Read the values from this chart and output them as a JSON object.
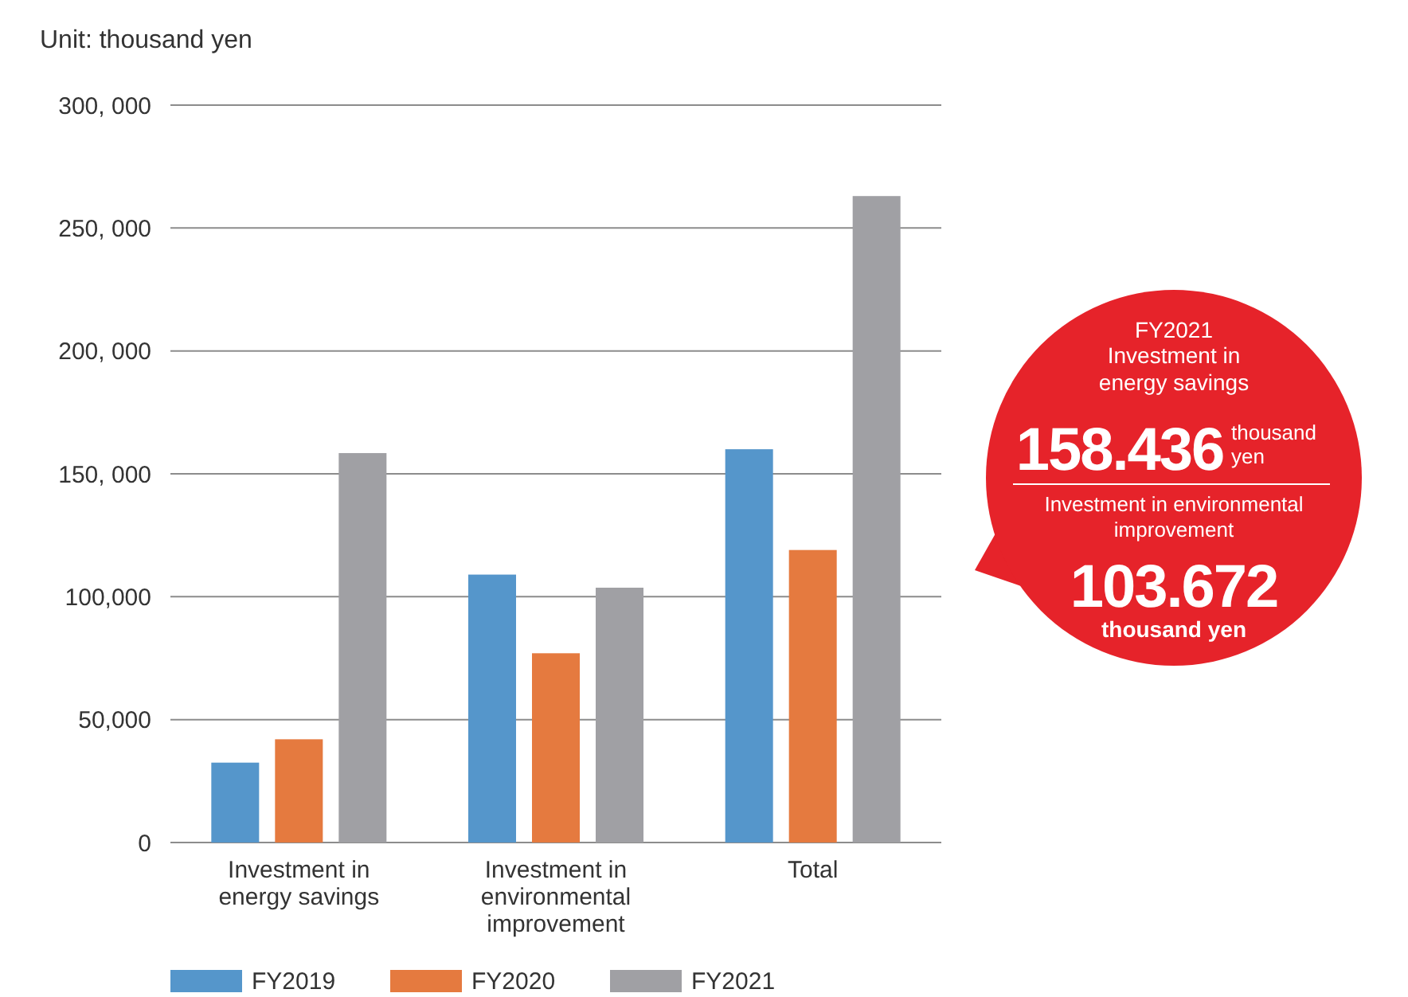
{
  "chart_data": {
    "type": "bar",
    "ylabel": "Unit: thousand yen",
    "categories": [
      "Investment in energy savings",
      "Investment in environmental improvement",
      "Total"
    ],
    "series": [
      {
        "name": "FY2019",
        "color": "#5596cb",
        "values": [
          32500,
          109000,
          160000
        ]
      },
      {
        "name": "FY2020",
        "color": "#e57a3f",
        "values": [
          42000,
          77000,
          119000
        ]
      },
      {
        "name": "FY2021",
        "color": "#a0a0a4",
        "values": [
          158436,
          103672,
          263000
        ]
      }
    ],
    "ylim": [
      0,
      300000
    ],
    "yticks": [
      0,
      {
        "value": 50000,
        "label": "50,000"
      },
      {
        "value": 100000,
        "label": "100,000"
      },
      {
        "value": 150000,
        "label": "150, 000"
      },
      {
        "value": 200000,
        "label": "200, 000"
      },
      {
        "value": 250000,
        "label": "250, 000"
      },
      {
        "value": 300000,
        "label": "300, 000"
      }
    ],
    "grid": "y",
    "legend": "bottom",
    "annotations": [
      "FY2021",
      "Investment in",
      "energy savings",
      "158.436",
      "thousand",
      "yen",
      "Investment in environmental",
      "improvement",
      "103.672",
      "thousand yen"
    ]
  }
}
